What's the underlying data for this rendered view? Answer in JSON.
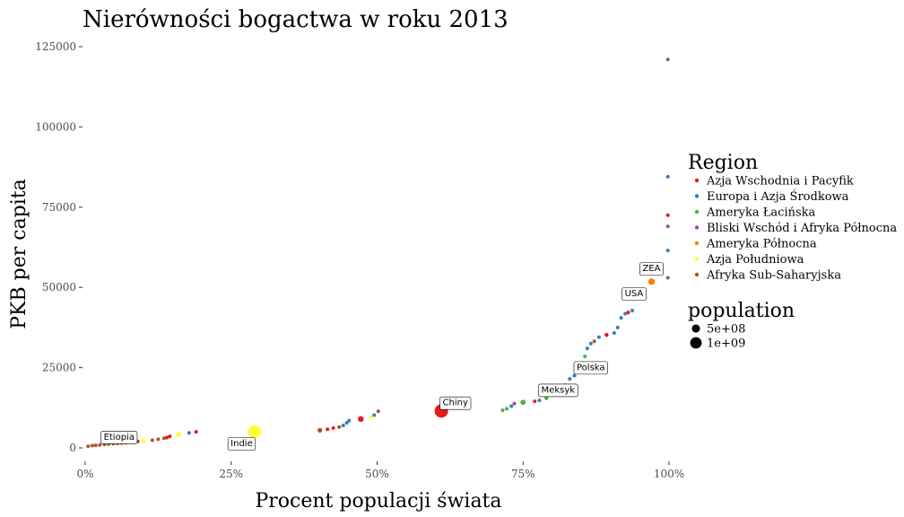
{
  "chart_data": {
    "type": "scatter",
    "title": "Nierówności bogactwa w roku 2013",
    "xlabel": "Procent populacji świata",
    "ylabel": "PKB per capita",
    "xlim": [
      0,
      1
    ],
    "ylim": [
      0,
      125000
    ],
    "x_ticks": [
      0,
      0.25,
      0.5,
      0.75,
      1.0
    ],
    "x_tick_labels": [
      "0%",
      "25%",
      "50%",
      "75%",
      "100%"
    ],
    "y_ticks": [
      0,
      25000,
      50000,
      75000,
      100000,
      125000
    ],
    "y_tick_labels": [
      "0",
      "25000",
      "50000",
      "75000",
      "100000",
      "125000"
    ],
    "grid": false,
    "legend_position": "right",
    "region_legend": {
      "title": "Region",
      "entries": [
        {
          "name": "Azja Wschodnia i Pacyfik",
          "color": "#e41a1c"
        },
        {
          "name": "Europa i Azja Środkowa",
          "color": "#377eb8"
        },
        {
          "name": "Ameryka Łacińska",
          "color": "#4daf4a"
        },
        {
          "name": "Bliski Wschód i Afryka Północna",
          "color": "#984ea3"
        },
        {
          "name": "Ameryka Północna",
          "color": "#ff7f00"
        },
        {
          "name": "Azja Południowa",
          "color": "#ffff33"
        },
        {
          "name": "Afryka Sub-Saharyjska",
          "color": "#a65628"
        }
      ]
    },
    "size_legend": {
      "title": "population",
      "entries": [
        {
          "label": "5e+08",
          "value": 500000000
        },
        {
          "label": "1e+09",
          "value": 1000000000
        }
      ]
    },
    "annotations": [
      {
        "label": "Etiopia",
        "x": 0.058,
        "y": 3500
      },
      {
        "label": "Indie",
        "x": 0.268,
        "y": 1500
      },
      {
        "label": "Chiny",
        "x": 0.634,
        "y": 14200
      },
      {
        "label": "Meksyk",
        "x": 0.81,
        "y": 18200
      },
      {
        "label": "Polska",
        "x": 0.866,
        "y": 25200
      },
      {
        "label": "USA",
        "x": 0.94,
        "y": 48200
      },
      {
        "label": "ZEA",
        "x": 0.97,
        "y": 56000
      }
    ],
    "points": [
      {
        "x": 0.005,
        "y": 500,
        "region": "Afryka Sub-Saharyjska",
        "pop": 30000000
      },
      {
        "x": 0.012,
        "y": 700,
        "region": "Afryka Sub-Saharyjska",
        "pop": 40000000
      },
      {
        "x": 0.018,
        "y": 800,
        "region": "Afryka Sub-Saharyjska",
        "pop": 30000000
      },
      {
        "x": 0.025,
        "y": 900,
        "region": "Afryka Sub-Saharyjska",
        "pop": 50000000
      },
      {
        "x": 0.033,
        "y": 1100,
        "region": "Afryka Sub-Saharyjska",
        "pop": 60000000
      },
      {
        "x": 0.04,
        "y": 1200,
        "region": "Afryka Sub-Saharyjska",
        "pop": 40000000
      },
      {
        "x": 0.048,
        "y": 1300,
        "region": "Afryka Sub-Saharyjska",
        "pop": 50000000
      },
      {
        "x": 0.055,
        "y": 1400,
        "region": "Afryka Sub-Saharyjska",
        "pop": 90000000
      },
      {
        "x": 0.062,
        "y": 1500,
        "region": "Afryka Sub-Saharyjska",
        "pop": 40000000
      },
      {
        "x": 0.07,
        "y": 1600,
        "region": "Afryka Sub-Saharyjska",
        "pop": 50000000
      },
      {
        "x": 0.078,
        "y": 1700,
        "region": "Afryka Sub-Saharyjska",
        "pop": 40000000
      },
      {
        "x": 0.085,
        "y": 1800,
        "region": "Afryka Sub-Saharyjska",
        "pop": 50000000
      },
      {
        "x": 0.09,
        "y": 2000,
        "region": "Azja Wschodnia i Pacyfik",
        "pop": 30000000
      },
      {
        "x": 0.1,
        "y": 2200,
        "region": "Azja Południowa",
        "pop": 160000000
      },
      {
        "x": 0.115,
        "y": 2400,
        "region": "Afryka Sub-Saharyjska",
        "pop": 40000000
      },
      {
        "x": 0.125,
        "y": 2700,
        "region": "Afryka Sub-Saharyjska",
        "pop": 40000000
      },
      {
        "x": 0.135,
        "y": 3000,
        "region": "Afryka Sub-Saharyjska",
        "pop": 40000000
      },
      {
        "x": 0.14,
        "y": 3200,
        "region": "Azja Wschodnia i Pacyfik",
        "pop": 40000000
      },
      {
        "x": 0.145,
        "y": 3600,
        "region": "Azja Wschodnia i Pacyfik",
        "pop": 30000000
      },
      {
        "x": 0.16,
        "y": 4200,
        "region": "Azja Południowa",
        "pop": 180000000
      },
      {
        "x": 0.178,
        "y": 4700,
        "region": "Europa i Azja Środkowa",
        "pop": 30000000
      },
      {
        "x": 0.19,
        "y": 5000,
        "region": "Azja Wschodnia i Pacyfik",
        "pop": 90000000
      },
      {
        "x": 0.29,
        "y": 5000,
        "region": "Azja Południowa",
        "pop": 1250000000
      },
      {
        "x": 0.402,
        "y": 5500,
        "region": "Afryka Sub-Saharyjska",
        "pop": 170000000
      },
      {
        "x": 0.415,
        "y": 5800,
        "region": "Azja Wschodnia i Pacyfik",
        "pop": 40000000
      },
      {
        "x": 0.425,
        "y": 6200,
        "region": "Azja Wschodnia i Pacyfik",
        "pop": 60000000
      },
      {
        "x": 0.435,
        "y": 6500,
        "region": "Afryka Sub-Saharyjska",
        "pop": 40000000
      },
      {
        "x": 0.442,
        "y": 7000,
        "region": "Europa i Azja Środkowa",
        "pop": 40000000
      },
      {
        "x": 0.448,
        "y": 7800,
        "region": "Europa i Azja Środkowa",
        "pop": 40000000
      },
      {
        "x": 0.452,
        "y": 8500,
        "region": "Europa i Azja Środkowa",
        "pop": 40000000
      },
      {
        "x": 0.472,
        "y": 9000,
        "region": "Azja Wschodnia i Pacyfik",
        "pop": 250000000
      },
      {
        "x": 0.49,
        "y": 9500,
        "region": "Azja Południowa",
        "pop": 30000000
      },
      {
        "x": 0.495,
        "y": 10200,
        "region": "Europa i Azja Środkowa",
        "pop": 30000000
      },
      {
        "x": 0.502,
        "y": 11400,
        "region": "Afryka Sub-Saharyjska",
        "pop": 40000000
      },
      {
        "x": 0.61,
        "y": 11500,
        "region": "Azja Wschodnia i Pacyfik",
        "pop": 1360000000
      },
      {
        "x": 0.715,
        "y": 11700,
        "region": "Ameryka Łacińska",
        "pop": 50000000
      },
      {
        "x": 0.722,
        "y": 12200,
        "region": "Ameryka Łacińska",
        "pop": 40000000
      },
      {
        "x": 0.73,
        "y": 13000,
        "region": "Europa i Azja Środkowa",
        "pop": 40000000
      },
      {
        "x": 0.735,
        "y": 13800,
        "region": "Bliski Wschód i Afryka Północna",
        "pop": 40000000
      },
      {
        "x": 0.75,
        "y": 14200,
        "region": "Ameryka Łacińska",
        "pop": 200000000
      },
      {
        "x": 0.77,
        "y": 14500,
        "region": "Azja Wschodnia i Pacyfik",
        "pop": 60000000
      },
      {
        "x": 0.778,
        "y": 14800,
        "region": "Europa i Azja Środkowa",
        "pop": 40000000
      },
      {
        "x": 0.79,
        "y": 15500,
        "region": "Ameryka Łacińska",
        "pop": 120000000
      },
      {
        "x": 0.8,
        "y": 16500,
        "region": "Europa i Azja Środkowa",
        "pop": 40000000
      },
      {
        "x": 0.808,
        "y": 17500,
        "region": "Bliski Wschód i Afryka Północna",
        "pop": 40000000
      },
      {
        "x": 0.815,
        "y": 18500,
        "region": "Azja Wschodnia i Pacyfik",
        "pop": 30000000
      },
      {
        "x": 0.822,
        "y": 19500,
        "region": "Europa i Azja Środkowa",
        "pop": 30000000
      },
      {
        "x": 0.83,
        "y": 21500,
        "region": "Europa i Azja Środkowa",
        "pop": 40000000
      },
      {
        "x": 0.838,
        "y": 22500,
        "region": "Europa i Azja Środkowa",
        "pop": 40000000
      },
      {
        "x": 0.845,
        "y": 23500,
        "region": "Azja Wschodnia i Pacyfik",
        "pop": 40000000
      },
      {
        "x": 0.852,
        "y": 26500,
        "region": "Ameryka Łacińska",
        "pop": 30000000
      },
      {
        "x": 0.856,
        "y": 28500,
        "region": "Ameryka Łacińska",
        "pop": 30000000
      },
      {
        "x": 0.86,
        "y": 31000,
        "region": "Europa i Azja Środkowa",
        "pop": 40000000
      },
      {
        "x": 0.866,
        "y": 32500,
        "region": "Europa i Azja Środkowa",
        "pop": 40000000
      },
      {
        "x": 0.872,
        "y": 33200,
        "region": "Afryka Sub-Saharyjska",
        "pop": 30000000
      },
      {
        "x": 0.88,
        "y": 34500,
        "region": "Europa i Azja Środkowa",
        "pop": 40000000
      },
      {
        "x": 0.893,
        "y": 35200,
        "region": "Azja Wschodnia i Pacyfik",
        "pop": 120000000
      },
      {
        "x": 0.906,
        "y": 35800,
        "region": "Europa i Azja Środkowa",
        "pop": 60000000
      },
      {
        "x": 0.912,
        "y": 37500,
        "region": "Europa i Azja Środkowa",
        "pop": 60000000
      },
      {
        "x": 0.918,
        "y": 40500,
        "region": "Europa i Azja Środkowa",
        "pop": 60000000
      },
      {
        "x": 0.925,
        "y": 41800,
        "region": "Europa i Azja Środkowa",
        "pop": 80000000
      },
      {
        "x": 0.93,
        "y": 42200,
        "region": "Azja Wschodnia i Pacyfik",
        "pop": 30000000
      },
      {
        "x": 0.937,
        "y": 42800,
        "region": "Europa i Azja Środkowa",
        "pop": 30000000
      },
      {
        "x": 0.97,
        "y": 51800,
        "region": "Ameryka Północna",
        "pop": 320000000
      },
      {
        "x": 0.998,
        "y": 53000,
        "region": "Bliski Wschód i Afryka Północna",
        "pop": 10000000
      },
      {
        "x": 0.998,
        "y": 61500,
        "region": "Europa i Azja Środkowa",
        "pop": 10000000
      },
      {
        "x": 0.998,
        "y": 69000,
        "region": "Bliski Wschód i Afryka Północna",
        "pop": 10000000
      },
      {
        "x": 0.998,
        "y": 72500,
        "region": "Azja Wschodnia i Pacyfik",
        "pop": 10000000
      },
      {
        "x": 0.998,
        "y": 84500,
        "region": "Europa i Azja Środkowa",
        "pop": 10000000
      },
      {
        "x": 0.998,
        "y": 121000,
        "region": "Bliski Wschód i Afryka Północna",
        "pop": 10000000
      }
    ]
  }
}
